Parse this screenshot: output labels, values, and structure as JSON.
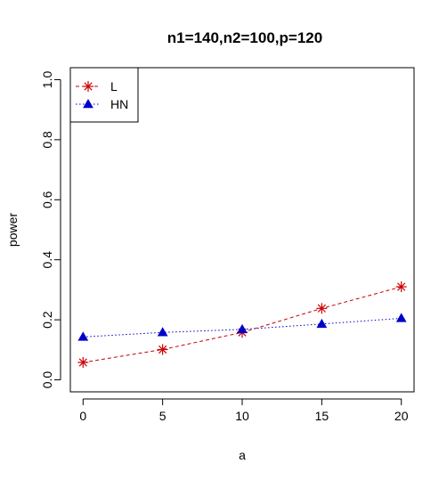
{
  "chart_data": {
    "type": "line",
    "title": "n1=140,n2=100,p=120",
    "xlabel": "a",
    "ylabel": "power",
    "x": [
      0,
      5,
      10,
      15,
      20
    ],
    "xlim": [
      -0.8,
      20.8
    ],
    "ylim": [
      -0.04,
      1.04
    ],
    "xticks": [
      0,
      5,
      10,
      15,
      20
    ],
    "yticks": [
      0.0,
      0.2,
      0.4,
      0.6,
      0.8,
      1.0
    ],
    "xtick_labels": [
      "0",
      "5",
      "10",
      "15",
      "20"
    ],
    "ytick_labels": [
      "0.0",
      "0.2",
      "0.4",
      "0.6",
      "0.8",
      "1.0"
    ],
    "grid": false,
    "legend_position": "top-left",
    "series": [
      {
        "name": "L",
        "values": [
          0.058,
          0.101,
          0.158,
          0.238,
          0.31
        ],
        "color": "#cc0000",
        "marker": "asterisk",
        "line_style": "dashed"
      },
      {
        "name": "HN",
        "values": [
          0.143,
          0.158,
          0.168,
          0.186,
          0.205
        ],
        "color": "#0000cc",
        "marker": "triangle",
        "line_style": "dotted"
      }
    ]
  }
}
